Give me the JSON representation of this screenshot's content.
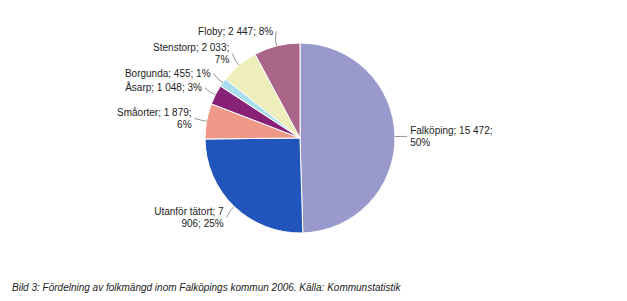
{
  "chart_data": {
    "type": "pie",
    "categories": [
      "Falköping; 15 472;\n50%",
      "Utanför tätort; 7\n906; 25%",
      "Småorter; 1 879;\n6%",
      "Åsarp; 1 048; 3%",
      "Borgunda; 455; 1%",
      "Stenstorp; 2 033;\n7%",
      "Floby; 2 447; 8%"
    ],
    "values": [
      15472,
      7906,
      1879,
      1048,
      455,
      2033,
      2447
    ],
    "colors": [
      "#9999cc",
      "#2255bb",
      "#ee9988",
      "#882277",
      "#aaddee",
      "#eeeebb",
      "#aa6688"
    ],
    "caption": "Bild 3: Fördelning av folkmängd inom Falköpings kommun 2006. Källa:  Kommunstatistik"
  }
}
